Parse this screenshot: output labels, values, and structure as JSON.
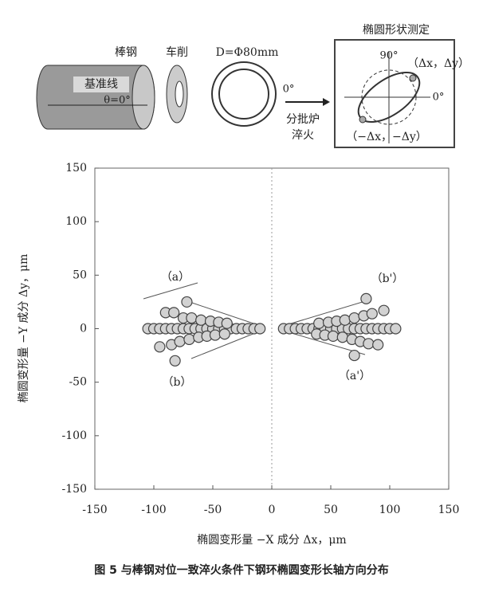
{
  "diagram": {
    "labels": {
      "bar": "棒钢",
      "turning": "车削",
      "diameter": "D=Φ80mm",
      "reference": "基准线",
      "theta": "θ=0°",
      "ring_zero": "0°",
      "furnace": "分批炉",
      "quench": "淬火",
      "measure_title": "椭圆形状测定",
      "deg90": "90°",
      "pos_point": "（Δx，Δy）",
      "deg0": "0°",
      "neg_point": "（−Δx，−Δy）"
    }
  },
  "chart_data": {
    "type": "scatter",
    "xlabel": "椭圆变形量 −X 成分 Δx，μm",
    "ylabel": "椭圆变形量 −Y 成分 Δy，μm",
    "xlim": [
      -150,
      150
    ],
    "ylim": [
      -150,
      150
    ],
    "xticks": [
      -150,
      -100,
      -50,
      0,
      50,
      100,
      150
    ],
    "yticks": [
      -150,
      -100,
      -50,
      0,
      50,
      100,
      150
    ],
    "color": "#d2d2d2",
    "x": [
      -105,
      -100,
      -95,
      -90,
      -85,
      -80,
      -75,
      -70,
      -65,
      -60,
      -55,
      -50,
      -45,
      -40,
      -35,
      -30,
      -25,
      -20,
      -15,
      -10,
      10,
      15,
      20,
      25,
      30,
      35,
      40,
      45,
      50,
      55,
      60,
      65,
      70,
      75,
      80,
      85,
      90,
      95,
      100,
      105,
      -90,
      -83,
      -75,
      -68,
      -60,
      -52,
      -45,
      -38,
      -72,
      -95,
      -85,
      -78,
      -70,
      -62,
      -55,
      -48,
      -40,
      -82,
      40,
      48,
      55,
      62,
      70,
      78,
      85,
      95,
      80,
      38,
      45,
      52,
      60,
      68,
      75,
      82,
      90,
      70
    ],
    "values": [
      0,
      0,
      0,
      0,
      0,
      0,
      0,
      0,
      0,
      0,
      0,
      0,
      0,
      0,
      0,
      0,
      0,
      0,
      0,
      0,
      0,
      0,
      0,
      0,
      0,
      0,
      0,
      0,
      0,
      0,
      0,
      0,
      0,
      0,
      0,
      0,
      0,
      0,
      0,
      0,
      15,
      15,
      10,
      10,
      8,
      7,
      6,
      5,
      25,
      -17,
      -15,
      -12,
      -10,
      -8,
      -7,
      -6,
      -5,
      -30,
      5,
      6,
      7,
      8,
      10,
      12,
      14,
      17,
      28,
      -5,
      -6,
      -7,
      -8,
      -10,
      -12,
      -14,
      -15,
      -25
    ],
    "annotations": [
      "（a）",
      "（b）",
      "（b'）",
      "（a'）"
    ]
  },
  "caption": "图 5 与棒钢对位一致淬火条件下钢环椭圆变形长轴方向分布"
}
